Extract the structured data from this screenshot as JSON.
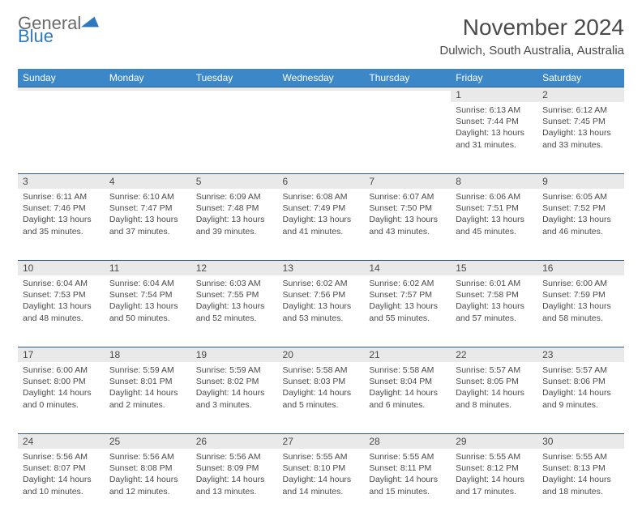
{
  "brand": {
    "part1": "General",
    "part2": "Blue"
  },
  "title": "November 2024",
  "subtitle": "Dulwich, South Australia, Australia",
  "colors": {
    "header_bg": "#3b87c8",
    "header_text": "#ffffff",
    "daynum_bg": "#e9e9e9",
    "daynum_border_top": "#2a5a88",
    "body_text": "#4a4a4a",
    "logo_blue": "#2e78c0",
    "page_bg": "#ffffff"
  },
  "weekdays": [
    "Sunday",
    "Monday",
    "Tuesday",
    "Wednesday",
    "Thursday",
    "Friday",
    "Saturday"
  ],
  "weeks": [
    [
      null,
      null,
      null,
      null,
      null,
      {
        "n": "1",
        "sunrise": "6:13 AM",
        "sunset": "7:44 PM",
        "day_h": 13,
        "day_m": 31
      },
      {
        "n": "2",
        "sunrise": "6:12 AM",
        "sunset": "7:45 PM",
        "day_h": 13,
        "day_m": 33
      }
    ],
    [
      {
        "n": "3",
        "sunrise": "6:11 AM",
        "sunset": "7:46 PM",
        "day_h": 13,
        "day_m": 35
      },
      {
        "n": "4",
        "sunrise": "6:10 AM",
        "sunset": "7:47 PM",
        "day_h": 13,
        "day_m": 37
      },
      {
        "n": "5",
        "sunrise": "6:09 AM",
        "sunset": "7:48 PM",
        "day_h": 13,
        "day_m": 39
      },
      {
        "n": "6",
        "sunrise": "6:08 AM",
        "sunset": "7:49 PM",
        "day_h": 13,
        "day_m": 41
      },
      {
        "n": "7",
        "sunrise": "6:07 AM",
        "sunset": "7:50 PM",
        "day_h": 13,
        "day_m": 43
      },
      {
        "n": "8",
        "sunrise": "6:06 AM",
        "sunset": "7:51 PM",
        "day_h": 13,
        "day_m": 45
      },
      {
        "n": "9",
        "sunrise": "6:05 AM",
        "sunset": "7:52 PM",
        "day_h": 13,
        "day_m": 46
      }
    ],
    [
      {
        "n": "10",
        "sunrise": "6:04 AM",
        "sunset": "7:53 PM",
        "day_h": 13,
        "day_m": 48
      },
      {
        "n": "11",
        "sunrise": "6:04 AM",
        "sunset": "7:54 PM",
        "day_h": 13,
        "day_m": 50
      },
      {
        "n": "12",
        "sunrise": "6:03 AM",
        "sunset": "7:55 PM",
        "day_h": 13,
        "day_m": 52
      },
      {
        "n": "13",
        "sunrise": "6:02 AM",
        "sunset": "7:56 PM",
        "day_h": 13,
        "day_m": 53
      },
      {
        "n": "14",
        "sunrise": "6:02 AM",
        "sunset": "7:57 PM",
        "day_h": 13,
        "day_m": 55
      },
      {
        "n": "15",
        "sunrise": "6:01 AM",
        "sunset": "7:58 PM",
        "day_h": 13,
        "day_m": 57
      },
      {
        "n": "16",
        "sunrise": "6:00 AM",
        "sunset": "7:59 PM",
        "day_h": 13,
        "day_m": 58
      }
    ],
    [
      {
        "n": "17",
        "sunrise": "6:00 AM",
        "sunset": "8:00 PM",
        "day_h": 14,
        "day_m": 0
      },
      {
        "n": "18",
        "sunrise": "5:59 AM",
        "sunset": "8:01 PM",
        "day_h": 14,
        "day_m": 2
      },
      {
        "n": "19",
        "sunrise": "5:59 AM",
        "sunset": "8:02 PM",
        "day_h": 14,
        "day_m": 3
      },
      {
        "n": "20",
        "sunrise": "5:58 AM",
        "sunset": "8:03 PM",
        "day_h": 14,
        "day_m": 5
      },
      {
        "n": "21",
        "sunrise": "5:58 AM",
        "sunset": "8:04 PM",
        "day_h": 14,
        "day_m": 6
      },
      {
        "n": "22",
        "sunrise": "5:57 AM",
        "sunset": "8:05 PM",
        "day_h": 14,
        "day_m": 8
      },
      {
        "n": "23",
        "sunrise": "5:57 AM",
        "sunset": "8:06 PM",
        "day_h": 14,
        "day_m": 9
      }
    ],
    [
      {
        "n": "24",
        "sunrise": "5:56 AM",
        "sunset": "8:07 PM",
        "day_h": 14,
        "day_m": 10
      },
      {
        "n": "25",
        "sunrise": "5:56 AM",
        "sunset": "8:08 PM",
        "day_h": 14,
        "day_m": 12
      },
      {
        "n": "26",
        "sunrise": "5:56 AM",
        "sunset": "8:09 PM",
        "day_h": 14,
        "day_m": 13
      },
      {
        "n": "27",
        "sunrise": "5:55 AM",
        "sunset": "8:10 PM",
        "day_h": 14,
        "day_m": 14
      },
      {
        "n": "28",
        "sunrise": "5:55 AM",
        "sunset": "8:11 PM",
        "day_h": 14,
        "day_m": 15
      },
      {
        "n": "29",
        "sunrise": "5:55 AM",
        "sunset": "8:12 PM",
        "day_h": 14,
        "day_m": 17
      },
      {
        "n": "30",
        "sunrise": "5:55 AM",
        "sunset": "8:13 PM",
        "day_h": 14,
        "day_m": 18
      }
    ]
  ]
}
